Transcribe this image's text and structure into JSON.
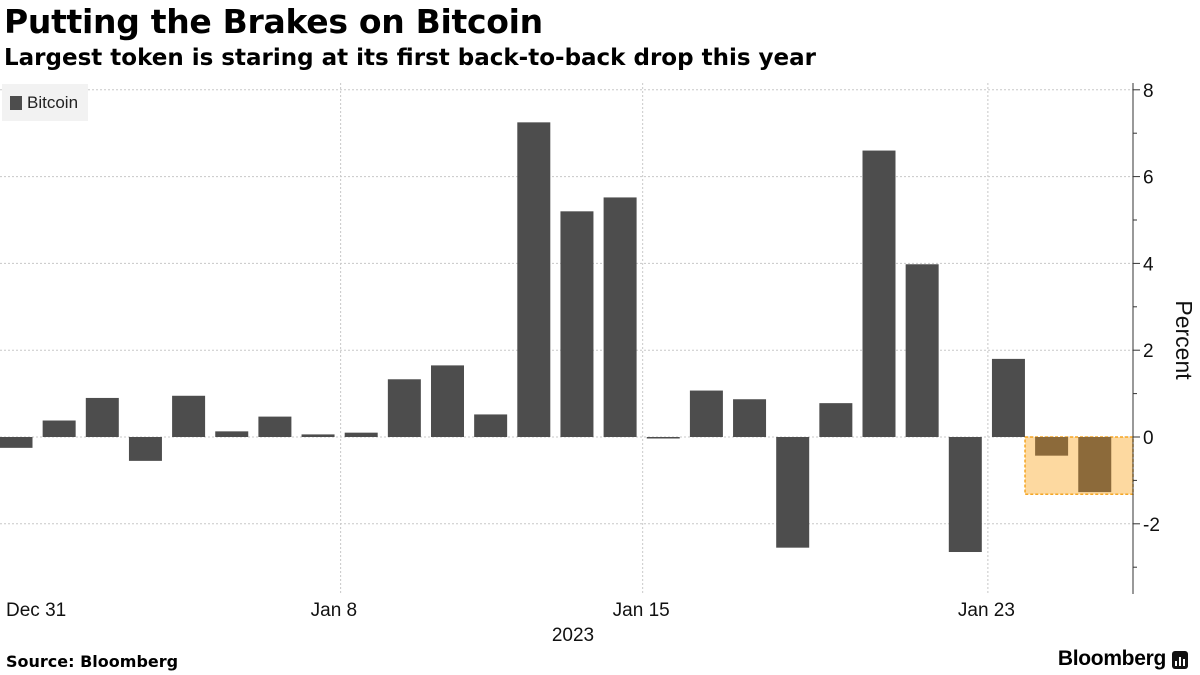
{
  "header": {
    "title": "Putting the Brakes on Bitcoin",
    "subtitle": "Largest token is staring at its first back-to-back drop this year"
  },
  "legend": {
    "label": "Bitcoin"
  },
  "footer": {
    "source": "Source: Bloomberg",
    "brand": "Bloomberg"
  },
  "colors": {
    "bar": "#4d4d4d",
    "highlight_fill": "#fdd9a0",
    "highlight_border": "#f5a623",
    "highlight_bar": "#8c6a3a",
    "grid": "#c8c8c8"
  },
  "chart_data": {
    "type": "bar",
    "series": [
      {
        "name": "Bitcoin",
        "dates": [
          "2022-12-31",
          "2023-01-01",
          "2023-01-02",
          "2023-01-03",
          "2023-01-04",
          "2023-01-05",
          "2023-01-06",
          "2023-01-07",
          "2023-01-08",
          "2023-01-09",
          "2023-01-10",
          "2023-01-11",
          "2023-01-12",
          "2023-01-13",
          "2023-01-14",
          "2023-01-15",
          "2023-01-16",
          "2023-01-17",
          "2023-01-18",
          "2023-01-19",
          "2023-01-20",
          "2023-01-21",
          "2023-01-22",
          "2023-01-23",
          "2023-01-24",
          "2023-01-25"
        ],
        "values": [
          -0.25,
          0.38,
          0.9,
          -0.55,
          0.95,
          0.13,
          0.47,
          0.06,
          0.1,
          1.33,
          1.65,
          0.52,
          7.25,
          5.2,
          5.52,
          -0.03,
          1.07,
          0.87,
          -2.55,
          0.78,
          6.6,
          3.98,
          -2.65,
          1.8,
          -0.43,
          -1.27
        ]
      }
    ],
    "x_tick_labels": [
      "Dec 31",
      "Jan 8",
      "Jan 15",
      "Jan 23"
    ],
    "x_tick_dates": [
      "2022-12-31",
      "2023-01-08",
      "2023-01-15",
      "2023-01-23"
    ],
    "x_sublabel": "2023",
    "y_ticks": [
      8,
      6,
      4,
      2,
      0,
      -2
    ],
    "ylim": [
      -3.6,
      8.2
    ],
    "ylabel": "Percent",
    "y_axis_side": "right",
    "grid": true,
    "legend_position": "top-left",
    "highlight": {
      "dates": [
        "2023-01-24",
        "2023-01-25"
      ],
      "y_range": [
        -1.32,
        0
      ]
    }
  }
}
